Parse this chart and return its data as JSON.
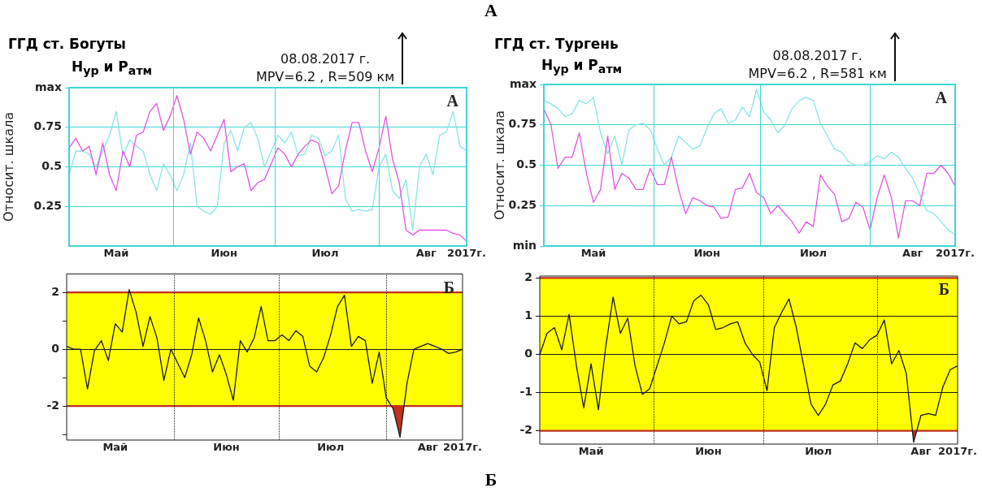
{
  "chart_data": [
    {
      "type": "line",
      "title": "ГГД ст. Богуты",
      "subtitle": "H$_{ур}$ и P$_{атм}$",
      "ylabel": "Относит. шкала",
      "categories": [
        null,
        null,
        null,
        null,
        null,
        null,
        null,
        "Май",
        null,
        null,
        null,
        null,
        null,
        null,
        null,
        null,
        null,
        null,
        null,
        null,
        null,
        null,
        null,
        "Июн",
        null,
        null,
        null,
        null,
        null,
        null,
        null,
        null,
        null,
        null,
        null,
        null,
        null,
        null,
        "Июл",
        null,
        null,
        null,
        null,
        null,
        null,
        null,
        null,
        null,
        null,
        null,
        null,
        null,
        null,
        "Авг",
        null,
        null,
        null,
        null,
        null,
        "2017г."
      ],
      "series": [
        {
          "color": "#e055e0",
          "values": [
            0.62,
            0.68,
            0.6,
            0.63,
            0.45,
            0.65,
            0.45,
            0.35,
            0.6,
            0.5,
            0.7,
            0.72,
            0.85,
            0.9,
            0.73,
            0.82,
            0.95,
            0.8,
            0.58,
            0.72,
            0.68,
            0.6,
            0.7,
            0.8,
            0.47,
            0.5,
            0.52,
            0.35,
            0.4,
            0.42,
            0.52,
            0.62,
            0.58,
            0.5,
            0.58,
            0.63,
            0.67,
            0.65,
            0.5,
            0.33,
            0.38,
            0.6,
            0.78,
            0.78,
            0.6,
            0.47,
            0.62,
            0.82,
            0.55,
            0.4,
            0.1,
            0.07,
            0.1,
            0.1,
            0.1,
            0.1,
            0.1,
            0.08,
            0.07,
            0.03
          ]
        },
        {
          "color": "#88e4e4",
          "values": [
            0.45,
            0.6,
            0.6,
            0.58,
            0.5,
            0.6,
            0.7,
            0.85,
            0.57,
            0.67,
            0.63,
            0.6,
            0.45,
            0.35,
            0.52,
            0.45,
            0.35,
            0.45,
            0.65,
            0.25,
            0.22,
            0.2,
            0.25,
            0.65,
            0.73,
            0.6,
            0.75,
            0.78,
            0.68,
            0.5,
            0.6,
            0.7,
            0.65,
            0.72,
            0.57,
            0.58,
            0.7,
            0.68,
            0.57,
            0.6,
            0.7,
            0.3,
            0.22,
            0.23,
            0.22,
            0.23,
            0.5,
            0.58,
            0.35,
            0.3,
            0.42,
            0.1,
            0.5,
            0.58,
            0.45,
            0.7,
            0.72,
            0.85,
            0.63,
            0.6
          ]
        }
      ],
      "ylim": [
        0,
        1
      ],
      "yticks": [
        0.25,
        0.5,
        0.75,
        {
          "value": 1,
          "label": "max"
        }
      ],
      "grid": "y",
      "legend": false,
      "annotations": [
        "А",
        "08.08.2017 г.\nMPV=6.2 , R=509 км",
        "А"
      ]
    },
    {
      "type": "line",
      "title": "ГГД ст. Тургень",
      "subtitle": "H$_{ур}$ и P$_{атм}$",
      "ylabel": "Относит. шкала",
      "categories": [
        null,
        null,
        null,
        null,
        null,
        null,
        null,
        "Май",
        null,
        null,
        null,
        null,
        null,
        null,
        null,
        null,
        null,
        null,
        null,
        null,
        null,
        null,
        null,
        "Июн",
        null,
        null,
        null,
        null,
        null,
        null,
        null,
        null,
        null,
        null,
        null,
        null,
        null,
        null,
        "Июл",
        null,
        null,
        null,
        null,
        null,
        null,
        null,
        null,
        null,
        null,
        null,
        null,
        null,
        "Авг",
        null,
        null,
        null,
        null,
        null,
        "2017г."
      ],
      "series": [
        {
          "color": "#e055e0",
          "values": [
            0.85,
            0.75,
            0.48,
            0.55,
            0.55,
            0.7,
            0.45,
            0.27,
            0.35,
            0.68,
            0.35,
            0.45,
            0.42,
            0.35,
            0.35,
            0.48,
            0.38,
            0.38,
            0.55,
            0.35,
            0.2,
            0.3,
            0.28,
            0.25,
            0.24,
            0.17,
            0.18,
            0.35,
            0.36,
            0.45,
            0.33,
            0.3,
            0.2,
            0.25,
            0.2,
            0.15,
            0.08,
            0.15,
            0.12,
            0.44,
            0.37,
            0.32,
            0.15,
            0.17,
            0.27,
            0.24,
            0.1,
            0.3,
            0.44,
            0.3,
            0.05,
            0.28,
            0.28,
            0.25,
            0.45,
            0.45,
            0.5,
            0.45,
            0.37
          ]
        },
        {
          "color": "#88e4e4",
          "values": [
            0.9,
            0.88,
            0.85,
            0.8,
            0.82,
            0.9,
            0.88,
            0.92,
            0.7,
            0.57,
            0.68,
            0.5,
            0.72,
            0.75,
            0.76,
            0.72,
            0.6,
            0.5,
            0.55,
            0.68,
            0.64,
            0.6,
            0.62,
            0.73,
            0.82,
            0.85,
            0.76,
            0.78,
            0.86,
            0.8,
            0.97,
            0.83,
            0.78,
            0.7,
            0.75,
            0.85,
            0.9,
            0.92,
            0.9,
            0.76,
            0.68,
            0.6,
            0.58,
            0.52,
            0.5,
            0.5,
            0.52,
            0.56,
            0.54,
            0.58,
            0.55,
            0.48,
            0.42,
            0.32,
            0.22,
            0.2,
            0.15,
            0.1,
            0.07
          ]
        }
      ],
      "ylim": [
        0,
        1
      ],
      "yticks": [
        {
          "value": 0,
          "label": "min"
        },
        0.25,
        0.5,
        0.75,
        {
          "value": 1,
          "label": "max"
        }
      ],
      "grid": "y",
      "legend": false,
      "annotations": [
        "А",
        "08.08.2017 г.\nMPV=6.2 , R=581 км"
      ]
    },
    {
      "type": "line",
      "categories": [
        null,
        null,
        null,
        null,
        null,
        null,
        null,
        "Май",
        null,
        null,
        null,
        null,
        null,
        null,
        null,
        null,
        null,
        null,
        null,
        null,
        null,
        null,
        null,
        "Июн",
        null,
        null,
        null,
        null,
        null,
        null,
        null,
        null,
        null,
        null,
        null,
        null,
        null,
        null,
        "Июл",
        null,
        null,
        null,
        null,
        null,
        null,
        null,
        null,
        null,
        null,
        null,
        null,
        null,
        "Авг",
        null,
        null,
        null,
        null,
        "2017г."
      ],
      "series": [
        {
          "color": "#1a1a1a",
          "values": [
            0.1,
            0,
            0,
            -1.4,
            -0.05,
            0.3,
            -0.4,
            0.9,
            0.6,
            2.1,
            1.3,
            0.1,
            1.15,
            0.4,
            -1.1,
            0,
            -0.5,
            -1,
            -0.2,
            1.1,
            0.3,
            -0.8,
            -0.2,
            -0.9,
            -1.8,
            0.3,
            -0.1,
            0.4,
            1.5,
            0.3,
            0.3,
            0.5,
            0.3,
            0.65,
            0.45,
            -0.6,
            -0.8,
            -0.3,
            0.5,
            1.5,
            1.9,
            0.1,
            0.45,
            0.3,
            -1.2,
            -0.1,
            -1.7,
            -2.1,
            -3.1,
            -1.2,
            0,
            0.1,
            0.2,
            0.1,
            0,
            -0.15,
            -0.1,
            0
          ]
        }
      ],
      "ylim": [
        -3.2,
        2.65
      ],
      "yticks": [
        {
          "value": -3,
          "label": null
        },
        -2,
        {
          "value": -1,
          "label": null
        },
        0,
        {
          "value": 1,
          "label": null
        },
        2
      ],
      "grid": "y",
      "legend": false,
      "bands": [
        {
          "axis": "y",
          "from": -2,
          "to": 2,
          "color": "#ffff00"
        }
      ],
      "ref_lines": [
        {
          "axis": "y",
          "value": 2,
          "color": "#c0301c"
        },
        {
          "axis": "y",
          "value": -2,
          "color": "#c0301c"
        }
      ],
      "annotations": [
        "Б",
        "Б"
      ]
    },
    {
      "type": "line",
      "categories": [
        null,
        null,
        null,
        null,
        null,
        null,
        null,
        "Май",
        null,
        null,
        null,
        null,
        null,
        null,
        null,
        null,
        null,
        null,
        null,
        null,
        null,
        null,
        null,
        "Июн",
        null,
        null,
        null,
        null,
        null,
        null,
        null,
        null,
        null,
        null,
        null,
        null,
        null,
        null,
        "Июл",
        null,
        null,
        null,
        null,
        null,
        null,
        null,
        null,
        null,
        null,
        null,
        null,
        null,
        "Авг",
        null,
        null,
        null,
        null,
        "2017г."
      ],
      "series": [
        {
          "color": "#1a1a1a",
          "values": [
            0,
            0.55,
            0.7,
            0.12,
            1.05,
            -0.3,
            -1.4,
            -0.25,
            -1.45,
            0.2,
            1.5,
            0.55,
            0.95,
            -0.3,
            -1.05,
            -0.9,
            -0.3,
            0.3,
            1,
            0.8,
            0.85,
            1.4,
            1.55,
            1.3,
            0.65,
            0.7,
            0.8,
            0.85,
            0.3,
            0,
            -0.2,
            -0.95,
            0.7,
            1.1,
            1.45,
            0.7,
            -0.3,
            -1.3,
            -1.6,
            -1.3,
            -0.8,
            -0.7,
            -0.25,
            0.3,
            0.15,
            0.38,
            0.5,
            0.9,
            -0.25,
            0.1,
            -0.5,
            -2.3,
            -1.6,
            -1.55,
            -1.6,
            -0.85,
            -0.4,
            -0.3
          ]
        }
      ],
      "ylim": [
        -2.35,
        2.05
      ],
      "yticks": [
        -2,
        -1,
        0,
        1,
        2
      ],
      "grid": "y",
      "legend": false,
      "bands": [
        {
          "axis": "y",
          "from": -2,
          "to": 2,
          "color": "#ffff00"
        }
      ],
      "ref_lines": [
        {
          "axis": "y",
          "value": 2,
          "color": "#c0301c"
        },
        {
          "axis": "y",
          "value": -2,
          "color": "#c0301c"
        }
      ],
      "annotations": [
        "Б"
      ]
    }
  ]
}
